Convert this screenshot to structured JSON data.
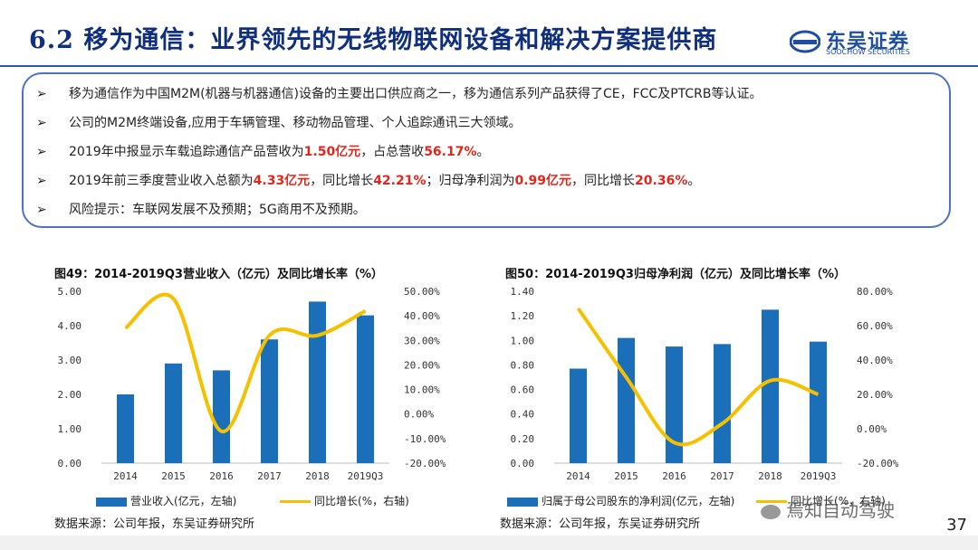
{
  "header": {
    "title": "6.2 移为通信：业界领先的无线物联网设备和解决方案提供商",
    "logo_name": "东吴证券",
    "logo_en": "SOOCHOW SECURITIES",
    "logo_mark": "SCS"
  },
  "bullets": [
    {
      "parts": [
        {
          "text": "移为通信作为中国M2M(机器与机器通信)设备的主要出口供应商之一，移为通信系列产品获得了CE，FCC及PTCRB等认证。",
          "red": false
        }
      ]
    },
    {
      "parts": [
        {
          "text": "公司的M2M终端设备,应用于车辆管理、移动物品管理、个人追踪通讯三大领域。",
          "red": false
        }
      ]
    },
    {
      "parts": [
        {
          "text": "2019年中报显示车载追踪通信产品营收为",
          "red": false
        },
        {
          "text": "1.50亿元",
          "red": true
        },
        {
          "text": "，占总营收",
          "red": false
        },
        {
          "text": "56.17%",
          "red": true
        },
        {
          "text": "。",
          "red": false
        }
      ]
    },
    {
      "parts": [
        {
          "text": "2019年前三季度营业收入总额为",
          "red": false
        },
        {
          "text": "4.33亿元",
          "red": true
        },
        {
          "text": "，同比增长",
          "red": false
        },
        {
          "text": "42.21%",
          "red": true
        },
        {
          "text": "；归母净利润为",
          "red": false
        },
        {
          "text": "0.99亿元",
          "red": true
        },
        {
          "text": "，同比增长",
          "red": false
        },
        {
          "text": "20.36%",
          "red": true
        },
        {
          "text": "。",
          "red": false
        }
      ]
    },
    {
      "parts": [
        {
          "text": "风险提示：车联网发展不及预期；5G商用不及预期。",
          "red": false
        }
      ]
    }
  ],
  "bullet_icon": "arrow-right-icon",
  "colors": {
    "bar": "#1b6fb8",
    "line": "#f5c000",
    "red": "#e2261c",
    "title": "#10307e"
  },
  "chart_data": [
    {
      "type": "bar",
      "title": "图49：2014-2019Q3营业收入（亿元）及同比增长率（%）",
      "categories": [
        "2014",
        "2015",
        "2016",
        "2017",
        "2018",
        "2019Q3"
      ],
      "series": [
        {
          "name": "营业收入(亿元，左轴)",
          "type": "bar",
          "axis": "left",
          "values": [
            2.0,
            2.9,
            2.7,
            3.6,
            4.7,
            4.3
          ]
        },
        {
          "name": "同比增长(%，右轴)",
          "type": "line",
          "axis": "right",
          "values": [
            35,
            47,
            -7,
            32,
            32,
            42
          ]
        }
      ],
      "ylim_left": [
        0,
        5
      ],
      "yticks_left": [
        "0.00",
        "1.00",
        "2.00",
        "3.00",
        "4.00",
        "5.00"
      ],
      "ylim_right": [
        -20,
        50
      ],
      "yticks_right": [
        "-20.00%",
        "-10.00%",
        "0.00%",
        "10.00%",
        "20.00%",
        "30.00%",
        "40.00%",
        "50.00%"
      ],
      "source": "数据来源：公司年报，东吴证券研究所"
    },
    {
      "type": "bar",
      "title": "图50：2014-2019Q3归母净利润（亿元）及同比增长率（%）",
      "categories": [
        "2014",
        "2015",
        "2016",
        "2017",
        "2018",
        "2019Q3"
      ],
      "series": [
        {
          "name": "归属于母公司股东的净利润(亿元，左轴)",
          "type": "bar",
          "axis": "left",
          "values": [
            0.77,
            1.02,
            0.95,
            0.97,
            1.25,
            0.99
          ]
        },
        {
          "name": "同比增长(%，右轴)",
          "type": "line",
          "axis": "right",
          "values": [
            70,
            30,
            -8,
            3,
            28,
            20
          ]
        }
      ],
      "ylim_left": [
        0,
        1.4
      ],
      "yticks_left": [
        "0.00",
        "0.20",
        "0.40",
        "0.60",
        "0.80",
        "1.00",
        "1.20",
        "1.40"
      ],
      "ylim_right": [
        -20,
        80
      ],
      "yticks_right": [
        "-20.00%",
        "0.00%",
        "20.00%",
        "40.00%",
        "60.00%",
        "80.00%"
      ],
      "source": "数据来源：公司年报，东吴证券研究所"
    }
  ],
  "footer": {
    "page_number": "37",
    "watermark": "焉知自动驾驶"
  }
}
